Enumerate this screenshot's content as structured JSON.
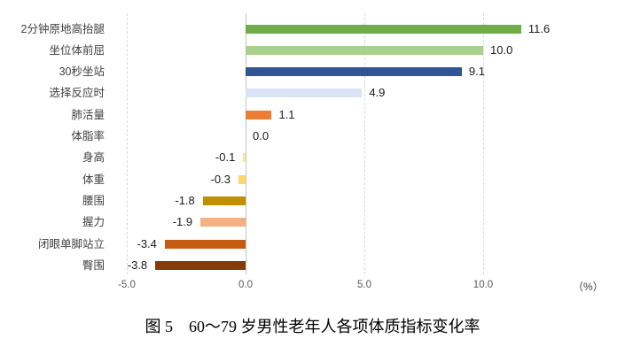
{
  "chart_data": {
    "type": "bar",
    "orientation": "horizontal",
    "title": "",
    "categories": [
      "2分钟原地高抬腿",
      "坐位体前屈",
      "30秒坐站",
      "选择反应时",
      "肺活量",
      "体脂率",
      "身高",
      "体重",
      "腰围",
      "握力",
      "闭眼单脚站立",
      "臀围"
    ],
    "values": [
      11.6,
      10.0,
      9.1,
      4.9,
      1.1,
      0.0,
      -0.1,
      -0.3,
      -1.8,
      -1.9,
      -3.4,
      -3.8
    ],
    "value_labels": [
      "11.6",
      "10.0",
      "9.1",
      "4.9",
      "1.1",
      "0.0",
      "-0.1",
      "-0.3",
      "-1.8",
      "-1.9",
      "-3.4",
      "-3.8"
    ],
    "bar_colors": [
      "#70ad47",
      "#a9d18e",
      "#2f5597",
      "#dae3f3",
      "#ed7d31",
      "#ed7d31",
      "#ffe699",
      "#ffd966",
      "#bf9000",
      "#f4b183",
      "#c55a11",
      "#843c0c"
    ],
    "x_ticks": [
      -5.0,
      0.0,
      5.0,
      10.0
    ],
    "x_tick_labels": [
      "-5.0",
      "0.0",
      "5.0",
      "10.0"
    ],
    "xlabel": "（%）",
    "xlim": [
      -5.8,
      13.5
    ],
    "grid": "vertical-dashed",
    "legend": "none",
    "background": "#ffffff"
  },
  "caption": "图 5　60～79 岁男性老年人各项体质指标变化率"
}
